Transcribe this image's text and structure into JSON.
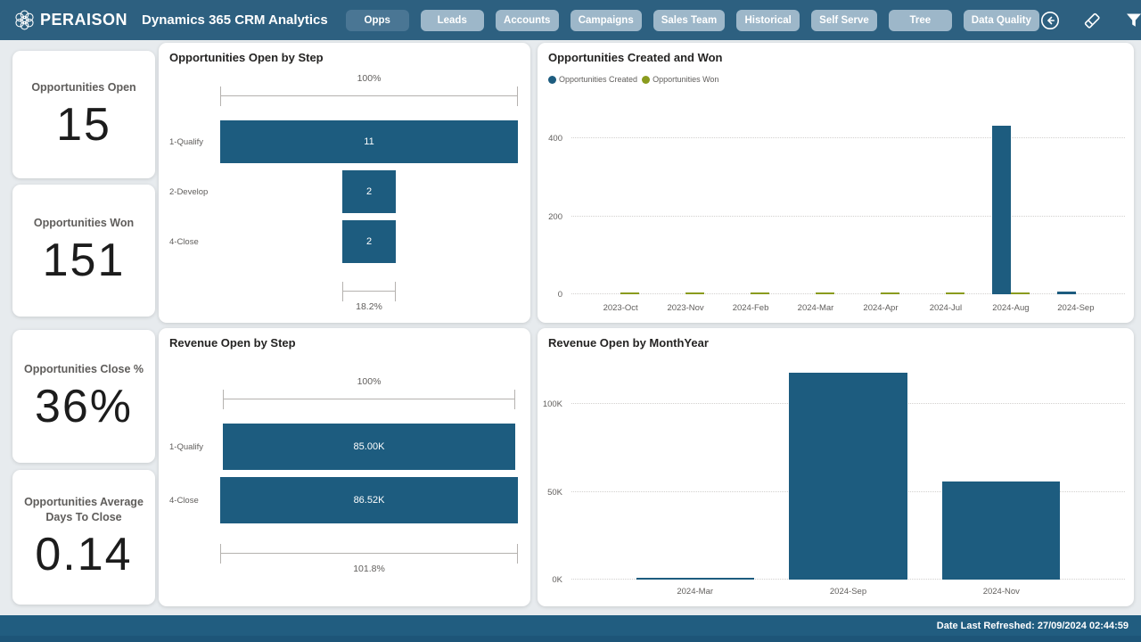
{
  "navbar": {
    "brand": "PERAISON",
    "title": "Dynamics 365 CRM Analytics",
    "buttons": [
      {
        "label": "Opps",
        "active": true
      },
      {
        "label": "Leads",
        "active": false
      },
      {
        "label": "Accounts",
        "active": false
      },
      {
        "label": "Campaigns",
        "active": false
      },
      {
        "label": "Sales Team",
        "active": false
      },
      {
        "label": "Historical",
        "active": false
      },
      {
        "label": "Self Serve",
        "active": false
      },
      {
        "label": "Tree",
        "active": false
      },
      {
        "label": "Data Quality",
        "active": false
      }
    ],
    "icons": [
      "back-icon",
      "eraser-icon",
      "filter-icon",
      "comment-icon"
    ]
  },
  "kpis": [
    {
      "label": "Opportunities Open",
      "value": "15"
    },
    {
      "label": "Opportunities Won",
      "value": "151"
    },
    {
      "label": "Opportunities Close %",
      "value": "36%"
    },
    {
      "label": "Opportunities Average Days To Close",
      "value": "0.14"
    }
  ],
  "colors": {
    "bar_blue": "#1d5c7f",
    "olive_green": "#8a9b1e",
    "navbar": "#2d6080",
    "nav_button": "#9db7c9",
    "nav_button_active": "#4a7694",
    "statusbar": "#215d80",
    "background": "#e7ebee"
  },
  "chart_data": [
    {
      "type": "bar",
      "subtype": "funnel-horizontal",
      "title": "Opportunities Open by Step",
      "categories": [
        "1-Qualify",
        "2-Develop",
        "4-Close"
      ],
      "values": [
        11,
        2,
        2
      ],
      "value_labels": [
        "11",
        "2",
        "2"
      ],
      "top_percent_label": "100%",
      "bottom_percent_label": "18.2%",
      "bar_color": "#1d5c7f"
    },
    {
      "type": "bar",
      "subtype": "clustered-column",
      "title": "Opportunities Created and Won",
      "categories": [
        "2023-Oct",
        "2023-Nov",
        "2024-Feb",
        "2024-Mar",
        "2024-Apr",
        "2024-Jul",
        "2024-Aug",
        "2024-Sep"
      ],
      "series": [
        {
          "name": "Opportunities Created",
          "color": "#1d5c7f",
          "values": [
            0,
            0,
            0,
            0,
            0,
            0,
            432,
            7
          ]
        },
        {
          "name": "Opportunities Won",
          "color": "#8a9b1e",
          "values": [
            5,
            2,
            5,
            2,
            2,
            2,
            3,
            0
          ]
        }
      ],
      "y_ticks": [
        0,
        200,
        400
      ],
      "y_tick_labels": [
        "0",
        "200",
        "400"
      ],
      "ylim": [
        0,
        480
      ],
      "legend_position": "top",
      "grid": "dotted",
      "bar_inset_pct": 3,
      "bar_width_frac": 0.29
    },
    {
      "type": "bar",
      "subtype": "funnel-horizontal",
      "title": "Revenue Open by Step",
      "categories": [
        "1-Qualify",
        "4-Close"
      ],
      "values": [
        85000,
        86520
      ],
      "value_labels": [
        "85.00K",
        "86.52K"
      ],
      "top_percent_label": "100%",
      "bottom_percent_label": "101.8%",
      "bar_color": "#1d5c7f"
    },
    {
      "type": "bar",
      "subtype": "column",
      "title": "Revenue Open by MonthYear",
      "categories": [
        "2024-Mar",
        "2024-Sep",
        "2024-Nov"
      ],
      "series": [
        {
          "name": "Revenue Open",
          "color": "#1d5c7f",
          "values": [
            800,
            118000,
            56000
          ]
        }
      ],
      "y_ticks": [
        0,
        50000,
        100000
      ],
      "y_tick_labels": [
        "0K",
        "50K",
        "100K"
      ],
      "ylim": [
        0,
        125000
      ],
      "legend_position": "none",
      "grid": "dotted",
      "bar_inset_pct": 8.5,
      "bar_width_frac": 0.77
    }
  ],
  "statusbar": {
    "refreshed": "Date Last Refreshed: 27/09/2024 02:44:59"
  }
}
